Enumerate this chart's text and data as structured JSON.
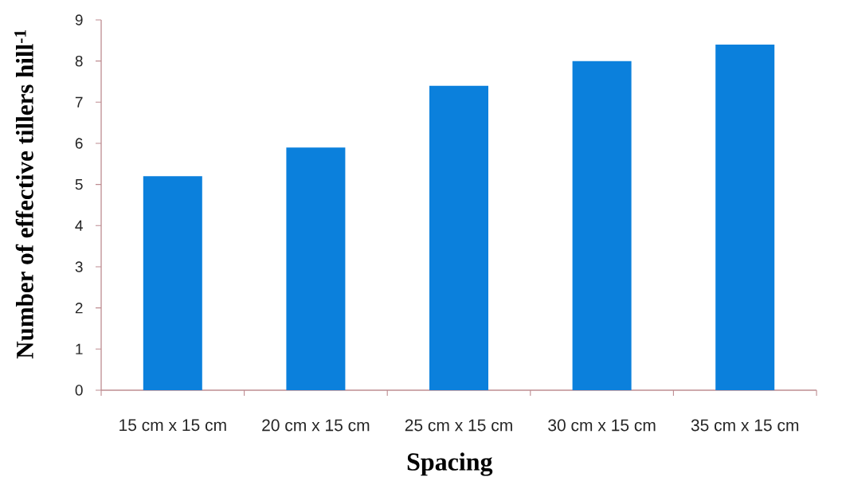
{
  "chart_data": {
    "type": "bar",
    "xlabel": "Spacing",
    "ylabel": "Number of effective tillers hill$^{-1}$",
    "categories": [
      "15 cm x 15 cm",
      "20 cm x 15 cm",
      "25 cm x 15 cm",
      "30 cm x 15 cm",
      "35 cm x 15 cm"
    ],
    "values": [
      5.2,
      5.9,
      7.4,
      8.0,
      8.4
    ],
    "color": "#0b80dc",
    "ylim": [
      0,
      9
    ],
    "yticks": [
      0,
      1,
      2,
      3,
      4,
      5,
      6,
      7,
      8,
      9
    ]
  }
}
